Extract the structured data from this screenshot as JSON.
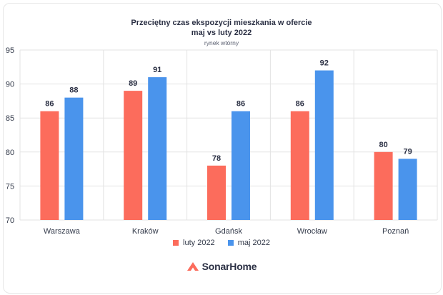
{
  "chart_data": {
    "type": "bar",
    "title": "Przeciętny czas ekspozycji mieszkania w ofercie",
    "title_line2": "maj vs luty 2022",
    "subtitle": "rynek wtórny",
    "categories": [
      "Warszawa",
      "Kraków",
      "Gdańsk",
      "Wrocław",
      "Poznań"
    ],
    "series": [
      {
        "name": "luty 2022",
        "values": [
          86,
          89,
          78,
          86,
          80
        ],
        "color": "#fc6c5c"
      },
      {
        "name": "maj 2022",
        "values": [
          88,
          91,
          86,
          92,
          79
        ],
        "color": "#4a94ec"
      }
    ],
    "ylim": [
      70,
      95
    ],
    "yticks": [
      70,
      75,
      80,
      85,
      90,
      95
    ],
    "grid": true,
    "legend": "bottom"
  },
  "brand": {
    "name": "SonarHome",
    "color": "#fc6c5c"
  }
}
